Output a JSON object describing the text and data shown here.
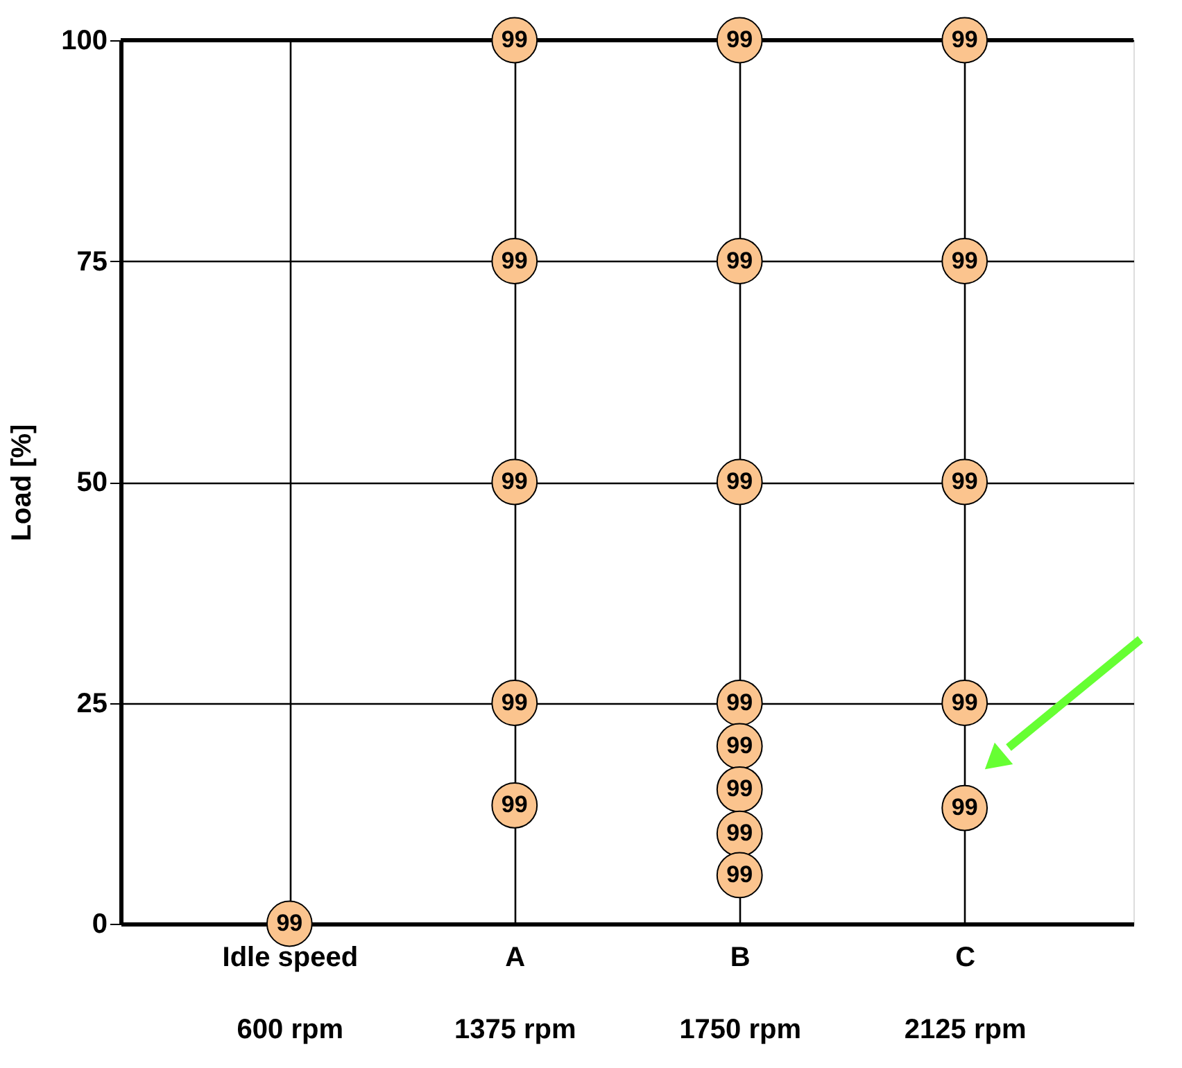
{
  "chart_data": {
    "type": "scatter",
    "ylabel": "Load [%]",
    "categories": [
      "Idle speed\n600 rpm",
      "A\n1375 rpm",
      "B\n1750 rpm",
      "C\n2125 rpm"
    ],
    "series": [
      {
        "color": "#fbc48e",
        "x": [
          "Idle speed\n600 rpm",
          "A\n1375 rpm",
          "A\n1375 rpm",
          "A\n1375 rpm",
          "A\n1375 rpm",
          "A\n1375 rpm",
          "B\n1750 rpm",
          "B\n1750 rpm",
          "B\n1750 rpm",
          "B\n1750 rpm",
          "B\n1750 rpm",
          "B\n1750 rpm",
          "B\n1750 rpm",
          "B\n1750 rpm",
          "C\n2125 rpm",
          "C\n2125 rpm",
          "C\n2125 rpm",
          "C\n2125 rpm",
          "C\n2125 rpm"
        ],
        "values": [
          0,
          100,
          75,
          50,
          25,
          13.4,
          100,
          75,
          50,
          25,
          20.1,
          15.2,
          10.2,
          5.5,
          100,
          75,
          50,
          25,
          13.1
        ]
      }
    ],
    "annotations": [
      "99",
      "99",
      "99",
      "99",
      "99",
      "99",
      "99",
      "99",
      "99",
      "99",
      "99",
      "99",
      "99",
      "99",
      "99",
      "99",
      "99",
      "99",
      "99"
    ],
    "ylim": [
      0,
      100
    ],
    "yticks": [
      0,
      25,
      50,
      75,
      100
    ],
    "grid": true,
    "marker": "circle"
  }
}
